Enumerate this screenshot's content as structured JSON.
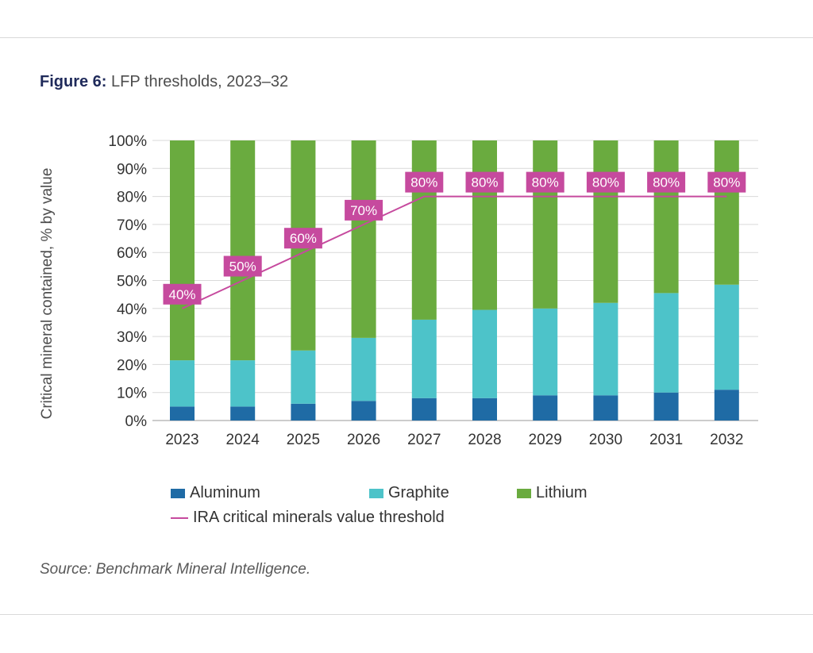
{
  "header": {
    "figure_label": "Figure 6:",
    "figure_title": "LFP thresholds, 2023–32"
  },
  "source": "Source: Benchmark Mineral Intelligence.",
  "colors": {
    "aluminum": "#1f6ba5",
    "graphite": "#4dc3c9",
    "lithium": "#6aab3f",
    "threshold": "#c64a9e",
    "grid": "#d9d9d9"
  },
  "chart_data": {
    "type": "bar",
    "stacked": true,
    "categories": [
      "2023",
      "2024",
      "2025",
      "2026",
      "2027",
      "2028",
      "2029",
      "2030",
      "2031",
      "2032"
    ],
    "series": [
      {
        "name": "Aluminum",
        "values": [
          5,
          5,
          6,
          7,
          8,
          8,
          9,
          9,
          10,
          11
        ]
      },
      {
        "name": "Graphite",
        "values": [
          16.5,
          16.5,
          19,
          22.5,
          28,
          31.5,
          31,
          33,
          35.5,
          37.5
        ]
      },
      {
        "name": "Lithium",
        "values": [
          78.5,
          78.5,
          75,
          70.5,
          64,
          60.5,
          60,
          58,
          54.5,
          51.5
        ]
      }
    ],
    "line_series": {
      "name": "IRA  critical minerals value threshold",
      "values": [
        40,
        50,
        60,
        70,
        80,
        80,
        80,
        80,
        80,
        80
      ],
      "labels": [
        "40%",
        "50%",
        "60%",
        "70%",
        "80%",
        "80%",
        "80%",
        "80%",
        "80%",
        "80%"
      ]
    },
    "title": "Figure 6: LFP thresholds, 2023–32",
    "xlabel": "",
    "ylabel": "Critical mineral contained, % by value",
    "ylim": [
      0,
      100
    ],
    "yticks": [
      "0%",
      "10%",
      "20%",
      "30%",
      "40%",
      "50%",
      "60%",
      "70%",
      "80%",
      "90%",
      "100%"
    ],
    "grid": true,
    "legend": "bottom"
  }
}
